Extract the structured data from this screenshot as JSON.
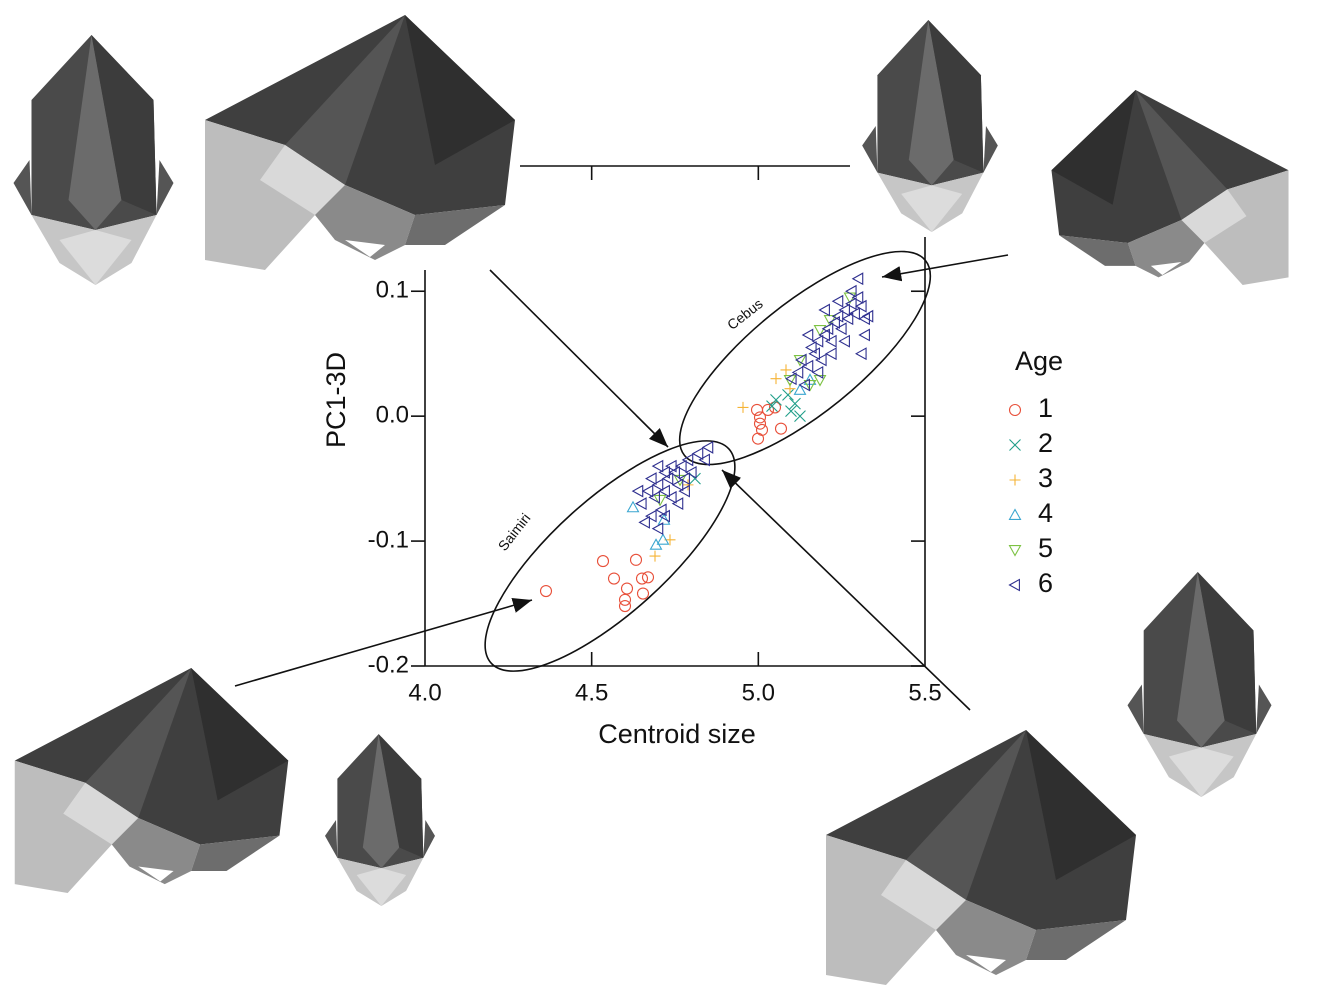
{
  "chart_data": {
    "type": "scatter",
    "x_label": "Centroid size",
    "y_label": "PC1-3D",
    "xlim": [
      4.0,
      5.5
    ],
    "ylim": [
      -0.2,
      0.117
    ],
    "xticks": [
      {
        "value": 4,
        "label": "4.0"
      },
      4.5,
      {
        "value": 5,
        "label": "5.0"
      },
      5.5
    ],
    "yticks": [
      -0.2,
      -0.1,
      {
        "value": 0,
        "label": "0.0"
      },
      0.1
    ],
    "legend_title": "Age",
    "annotations": [
      "Cebus",
      "Saimiri"
    ],
    "series": [
      {
        "name": "1",
        "color": "#e8503a",
        "marker": "circle",
        "x": [
          4.363,
          4.534,
          4.567,
          4.606,
          4.6,
          4.6,
          4.651,
          4.669,
          4.654,
          4.633,
          5.005,
          5.005,
          5.011,
          4.999,
          5.029,
          5.05,
          5.068,
          4.996
        ],
        "values": [
          -0.14,
          -0.116,
          -0.13,
          -0.138,
          -0.147,
          -0.152,
          -0.13,
          -0.129,
          -0.142,
          -0.115,
          -0.001,
          -0.006,
          -0.011,
          -0.018,
          0.005,
          0.007,
          -0.01,
          0.005
        ]
      },
      {
        "name": "2",
        "color": "#1f9e89",
        "marker": "x",
        "x": [
          5.041,
          5.098,
          5.125,
          5.089,
          5.053,
          5.11,
          4.81
        ],
        "values": [
          0.008,
          0.004,
          0.0,
          0.017,
          0.013,
          0.01,
          -0.05
        ]
      },
      {
        "name": "3",
        "color": "#f5b335",
        "marker": "plus",
        "x": [
          4.954,
          5.053,
          5.095,
          4.69,
          4.735,
          4.789,
          5.083
        ],
        "values": [
          0.007,
          0.03,
          0.022,
          -0.112,
          -0.099,
          -0.055,
          0.037
        ]
      },
      {
        "name": "4",
        "color": "#3aa6d0",
        "marker": "triangle-up",
        "x": [
          4.624,
          4.693,
          4.714,
          4.717,
          5.155,
          5.125
        ],
        "values": [
          -0.073,
          -0.103,
          -0.099,
          -0.083,
          0.029,
          0.021
        ]
      },
      {
        "name": "5",
        "color": "#7cc242",
        "marker": "triangle-down",
        "x": [
          5.275,
          5.185,
          5.125,
          5.155,
          5.095,
          4.705,
          4.765,
          5.215,
          5.185
        ],
        "values": [
          0.095,
          0.069,
          0.045,
          0.025,
          0.029,
          -0.067,
          -0.051,
          0.077,
          0.029
        ]
      },
      {
        "name": "6",
        "color": "#2e2f8f",
        "marker": "triangle-left",
        "x": [
          5.1,
          5.12,
          5.13,
          5.15,
          5.16,
          5.17,
          5.18,
          5.19,
          5.2,
          5.21,
          5.22,
          5.23,
          5.24,
          5.25,
          5.26,
          5.27,
          5.28,
          5.29,
          5.3,
          5.31,
          5.32,
          5.3,
          5.28,
          5.14,
          5.18,
          5.22,
          5.26,
          5.32,
          5.33,
          5.24,
          5.2,
          5.31,
          5.15,
          4.65,
          4.67,
          4.68,
          4.69,
          4.7,
          4.71,
          4.72,
          4.73,
          4.74,
          4.75,
          4.76,
          4.77,
          4.78,
          4.79,
          4.8,
          4.82,
          4.84,
          4.66,
          4.7,
          4.72,
          4.68,
          4.74,
          4.76,
          4.85,
          4.64,
          4.78,
          4.72,
          4.7
        ],
        "values": [
          0.03,
          0.035,
          0.045,
          0.04,
          0.055,
          0.05,
          0.06,
          0.045,
          0.065,
          0.07,
          0.06,
          0.075,
          0.08,
          0.07,
          0.085,
          0.078,
          0.09,
          0.082,
          0.095,
          0.088,
          0.078,
          0.11,
          0.1,
          0.025,
          0.035,
          0.05,
          0.06,
          0.065,
          0.08,
          0.092,
          0.085,
          0.05,
          0.065,
          -0.07,
          -0.06,
          -0.08,
          -0.065,
          -0.055,
          -0.075,
          -0.06,
          -0.05,
          -0.065,
          -0.045,
          -0.055,
          -0.04,
          -0.05,
          -0.035,
          -0.045,
          -0.03,
          -0.035,
          -0.085,
          -0.09,
          -0.08,
          -0.05,
          -0.04,
          -0.07,
          -0.025,
          -0.06,
          -0.06,
          -0.045,
          -0.04
        ]
      }
    ]
  }
}
